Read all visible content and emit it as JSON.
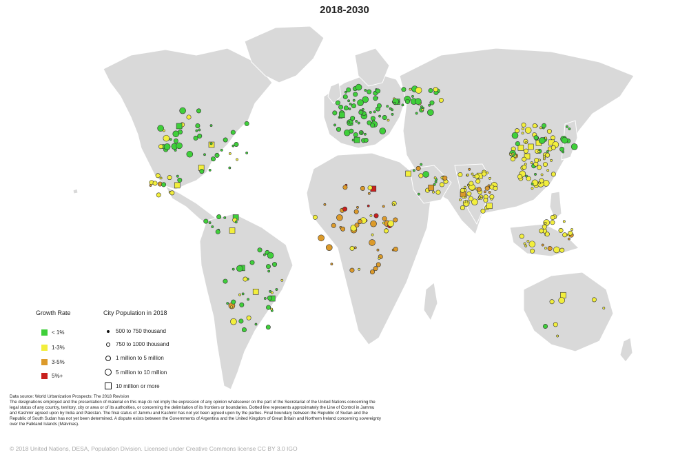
{
  "title": "2018-2030",
  "legend": {
    "growth_title": "Growth Rate",
    "growth_classes": [
      {
        "label": "< 1%",
        "color": "#3fcf3a"
      },
      {
        "label": "1-3%",
        "color": "#f2ee3c"
      },
      {
        "label": "3-5%",
        "color": "#dc9a2a"
      },
      {
        "label": "5%+",
        "color": "#c8201e"
      }
    ],
    "population_title": "City Population in 2018",
    "population_classes": [
      {
        "label": "500 to 750 thousand",
        "symbol": "dot-small"
      },
      {
        "label": "750 to 1000 thousand",
        "symbol": "dot-medium"
      },
      {
        "label": "1 million to 5 million",
        "symbol": "circle"
      },
      {
        "label": "5 million to 10 million",
        "symbol": "circle-large"
      },
      {
        "label": "10 million or more",
        "symbol": "square"
      }
    ]
  },
  "footnote": {
    "source": "Data source: World Urbanization Prospects: The 2018 Revision",
    "disclaimer": "The designations employed and the presentation of material on this map do not imply the expression of any opinion whatsoever on the part of the Secretariat of the United Nations concerning the legal status of any country, territory, city or area or of its authorities, or concerning the delimitation of its frontiers or boundaries. Dotted line represents approximately the Line of Control in Jammu and Kashmir agreed upon by India and Pakistan. The final status of Jammu and Kashmir has not yet been agreed upon by the parties. Final boundary between the Republic of Sudan and the Republic of South Sudan has not yet been determined. A dispute exists between the Governments of Argentina and the United Kingdom of Great Britain and Northern Ireland concerning sovereignty over the Falkland Islands (Malvinas)."
  },
  "copyright": "© 2018 United Nations, DESA, Population Division. Licensed under Creative Commons license CC BY 3.0 IGO",
  "colors": {
    "land": "#d9d9d9",
    "land_stroke": "#ffffff",
    "ocean": "#ffffff"
  }
}
